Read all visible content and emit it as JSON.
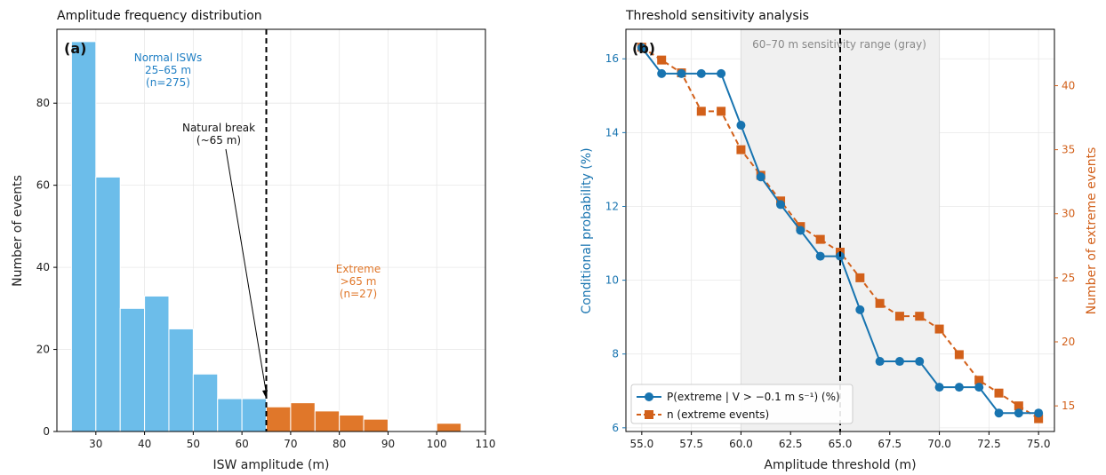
{
  "chart_data": [
    {
      "type": "bar",
      "panel_label": "(a)",
      "title": "Amplitude frequency distribution",
      "xlabel": "ISW amplitude (m)",
      "ylabel": "Number of events",
      "xlim": [
        22,
        110
      ],
      "ylim": [
        0,
        98
      ],
      "xticks": [
        30,
        40,
        50,
        60,
        70,
        80,
        90,
        100,
        110
      ],
      "yticks": [
        0,
        20,
        40,
        60,
        80
      ],
      "bin_width": 5,
      "bins": [
        {
          "start": 25,
          "value": 95,
          "group": "normal"
        },
        {
          "start": 30,
          "value": 62,
          "group": "normal"
        },
        {
          "start": 35,
          "value": 30,
          "group": "normal"
        },
        {
          "start": 40,
          "value": 33,
          "group": "normal"
        },
        {
          "start": 45,
          "value": 25,
          "group": "normal"
        },
        {
          "start": 50,
          "value": 14,
          "group": "normal"
        },
        {
          "start": 55,
          "value": 8,
          "group": "normal"
        },
        {
          "start": 60,
          "value": 8,
          "group": "normal"
        },
        {
          "start": 65,
          "value": 6,
          "group": "extreme"
        },
        {
          "start": 70,
          "value": 7,
          "group": "extreme"
        },
        {
          "start": 75,
          "value": 5,
          "group": "extreme"
        },
        {
          "start": 80,
          "value": 4,
          "group": "extreme"
        },
        {
          "start": 85,
          "value": 3,
          "group": "extreme"
        },
        {
          "start": 100,
          "value": 2,
          "group": "extreme"
        }
      ],
      "threshold_x": 65,
      "annotations": {
        "normal_line1": "Normal ISWs",
        "normal_line2": "25–65 m",
        "normal_line3": "(n=275)",
        "extreme_line1": "Extreme",
        "extreme_line2": ">65 m",
        "extreme_line3": "(n=27)",
        "break_line1": "Natural break",
        "break_line2": "(~65 m)",
        "break_arrow_target": [
          65,
          8
        ]
      },
      "colors": {
        "normal": "#6cbdea",
        "extreme": "#e0772a",
        "normal_text": "#1f7fc4",
        "extreme_text": "#e0772a"
      }
    },
    {
      "type": "line",
      "panel_label": "(b)",
      "title": "Threshold sensitivity analysis",
      "xlabel": "Amplitude threshold (m)",
      "ylabel": "Conditional probability (%)",
      "ylabel_right": "Number of extreme events",
      "xlim": [
        54.2,
        75.8
      ],
      "ylim": [
        5.9,
        16.8
      ],
      "ylim_right": [
        13,
        44.4
      ],
      "xticks": [
        55.0,
        57.5,
        60.0,
        62.5,
        65.0,
        67.5,
        70.0,
        72.5,
        75.0
      ],
      "yticks": [
        6,
        8,
        10,
        12,
        14,
        16
      ],
      "yticks_right": [
        15,
        20,
        25,
        30,
        35,
        40
      ],
      "x": [
        55,
        56,
        57,
        58,
        59,
        60,
        61,
        62,
        63,
        64,
        65,
        66,
        67,
        68,
        69,
        70,
        71,
        72,
        73,
        74,
        75
      ],
      "series": [
        {
          "name": "P(extreme | V > −0.1 m s⁻¹) (%)",
          "axis": "left",
          "marker": "circle",
          "line": "solid",
          "color": "#1874b0",
          "values": [
            16.3,
            15.6,
            15.6,
            15.6,
            15.6,
            14.2,
            12.8,
            12.05,
            11.35,
            10.65,
            10.65,
            9.2,
            7.8,
            7.8,
            7.8,
            7.1,
            7.1,
            7.1,
            6.4,
            6.4,
            6.4
          ]
        },
        {
          "name": "n (extreme events)",
          "axis": "right",
          "marker": "square",
          "line": "dashed",
          "color": "#d2601a",
          "values": [
            43,
            42,
            41,
            38,
            38,
            35,
            33,
            31,
            29,
            28,
            27,
            25,
            23,
            22,
            22,
            21,
            19,
            17,
            16,
            15,
            14
          ]
        }
      ],
      "shaded_range": [
        60,
        70
      ],
      "shaded_label": "60–70 m sensitivity range (gray)",
      "threshold_x": 65,
      "legend_position": "lower-left"
    }
  ]
}
